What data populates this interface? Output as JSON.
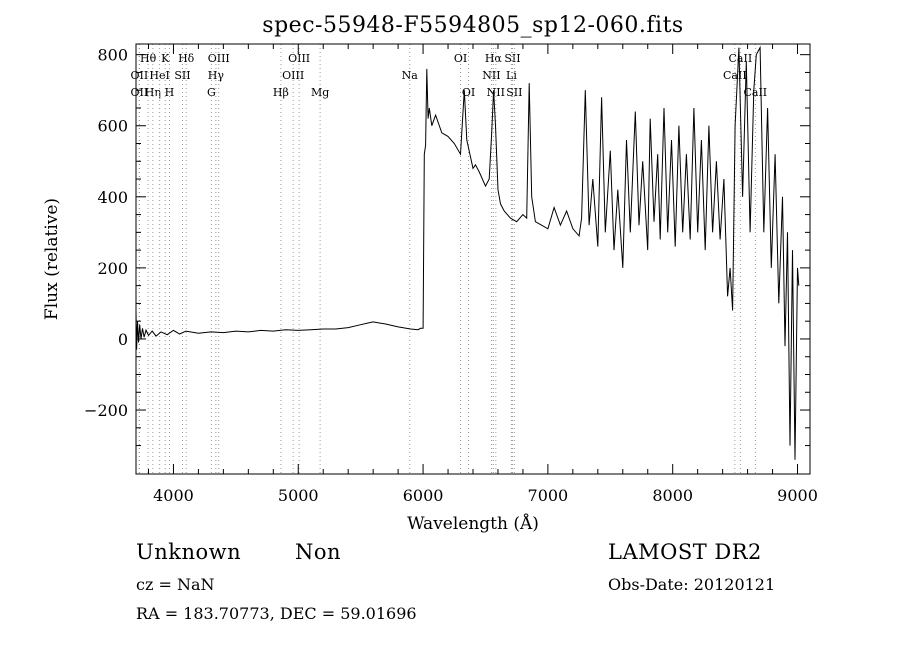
{
  "chart_data": {
    "type": "line",
    "title": "spec-55948-F5594805_sp12-060.fits",
    "xlabel": "Wavelength (Å)",
    "ylabel": "Flux (relative)",
    "xlim": [
      3700,
      9100
    ],
    "ylim": [
      -380,
      830
    ],
    "xticks": [
      {
        "value": 4000,
        "label": "4000"
      },
      {
        "value": 5000,
        "label": "5000"
      },
      {
        "value": 6000,
        "label": "6000"
      },
      {
        "value": 7000,
        "label": "7000"
      },
      {
        "value": 8000,
        "label": "8000"
      },
      {
        "value": 9000,
        "label": "9000"
      }
    ],
    "yticks": [
      {
        "value": -200,
        "label": "−200"
      },
      {
        "value": 0,
        "label": "0"
      },
      {
        "value": 200,
        "label": "200"
      },
      {
        "value": 400,
        "label": "400"
      },
      {
        "value": 600,
        "label": "600"
      },
      {
        "value": 800,
        "label": "800"
      }
    ],
    "grid": false,
    "series": [
      {
        "values": [
          [
            3700,
            80
          ],
          [
            3705,
            -30
          ],
          [
            3712,
            50
          ],
          [
            3720,
            -10
          ],
          [
            3730,
            40
          ],
          [
            3740,
            0
          ],
          [
            3752,
            30
          ],
          [
            3765,
            5
          ],
          [
            3780,
            25
          ],
          [
            3800,
            10
          ],
          [
            3830,
            22
          ],
          [
            3860,
            8
          ],
          [
            3900,
            20
          ],
          [
            3950,
            12
          ],
          [
            4000,
            24
          ],
          [
            4050,
            14
          ],
          [
            4100,
            22
          ],
          [
            4200,
            16
          ],
          [
            4300,
            20
          ],
          [
            4400,
            18
          ],
          [
            4500,
            22
          ],
          [
            4600,
            20
          ],
          [
            4700,
            24
          ],
          [
            4800,
            22
          ],
          [
            4900,
            26
          ],
          [
            5000,
            24
          ],
          [
            5100,
            26
          ],
          [
            5200,
            28
          ],
          [
            5300,
            28
          ],
          [
            5400,
            32
          ],
          [
            5500,
            40
          ],
          [
            5550,
            44
          ],
          [
            5600,
            48
          ],
          [
            5650,
            45
          ],
          [
            5700,
            42
          ],
          [
            5800,
            34
          ],
          [
            5900,
            28
          ],
          [
            5960,
            26
          ],
          [
            5980,
            30
          ],
          [
            6000,
            30
          ],
          [
            6010,
            520
          ],
          [
            6020,
            545
          ],
          [
            6030,
            760
          ],
          [
            6040,
            620
          ],
          [
            6050,
            650
          ],
          [
            6070,
            600
          ],
          [
            6100,
            630
          ],
          [
            6150,
            580
          ],
          [
            6200,
            570
          ],
          [
            6250,
            550
          ],
          [
            6300,
            520
          ],
          [
            6330,
            700
          ],
          [
            6350,
            560
          ],
          [
            6400,
            480
          ],
          [
            6420,
            490
          ],
          [
            6450,
            470
          ],
          [
            6500,
            430
          ],
          [
            6530,
            450
          ],
          [
            6550,
            580
          ],
          [
            6565,
            700
          ],
          [
            6580,
            600
          ],
          [
            6600,
            420
          ],
          [
            6620,
            380
          ],
          [
            6650,
            360
          ],
          [
            6700,
            340
          ],
          [
            6750,
            330
          ],
          [
            6800,
            350
          ],
          [
            6830,
            340
          ],
          [
            6850,
            720
          ],
          [
            6870,
            400
          ],
          [
            6900,
            330
          ],
          [
            6950,
            320
          ],
          [
            7000,
            310
          ],
          [
            7050,
            370
          ],
          [
            7100,
            320
          ],
          [
            7150,
            360
          ],
          [
            7200,
            310
          ],
          [
            7250,
            290
          ],
          [
            7270,
            340
          ],
          [
            7300,
            700
          ],
          [
            7330,
            320
          ],
          [
            7360,
            450
          ],
          [
            7400,
            260
          ],
          [
            7430,
            680
          ],
          [
            7460,
            300
          ],
          [
            7500,
            530
          ],
          [
            7530,
            250
          ],
          [
            7560,
            420
          ],
          [
            7600,
            200
          ],
          [
            7630,
            560
          ],
          [
            7660,
            300
          ],
          [
            7700,
            640
          ],
          [
            7730,
            320
          ],
          [
            7760,
            500
          ],
          [
            7800,
            250
          ],
          [
            7820,
            620
          ],
          [
            7850,
            330
          ],
          [
            7880,
            520
          ],
          [
            7900,
            280
          ],
          [
            7930,
            650
          ],
          [
            7960,
            300
          ],
          [
            7990,
            560
          ],
          [
            8020,
            260
          ],
          [
            8050,
            600
          ],
          [
            8080,
            300
          ],
          [
            8110,
            520
          ],
          [
            8140,
            280
          ],
          [
            8170,
            650
          ],
          [
            8200,
            300
          ],
          [
            8230,
            560
          ],
          [
            8260,
            250
          ],
          [
            8290,
            600
          ],
          [
            8320,
            300
          ],
          [
            8350,
            500
          ],
          [
            8380,
            280
          ],
          [
            8410,
            450
          ],
          [
            8440,
            120
          ],
          [
            8460,
            200
          ],
          [
            8480,
            80
          ],
          [
            8500,
            600
          ],
          [
            8530,
            820
          ],
          [
            8560,
            400
          ],
          [
            8590,
            780
          ],
          [
            8620,
            300
          ],
          [
            8650,
            700
          ],
          [
            8670,
            800
          ],
          [
            8700,
            820
          ],
          [
            8730,
            300
          ],
          [
            8760,
            650
          ],
          [
            8790,
            200
          ],
          [
            8820,
            520
          ],
          [
            8850,
            100
          ],
          [
            8880,
            400
          ],
          [
            8900,
            -20
          ],
          [
            8920,
            300
          ],
          [
            8940,
            -300
          ],
          [
            8960,
            250
          ],
          [
            8980,
            -340
          ],
          [
            9000,
            200
          ],
          [
            9010,
            150
          ]
        ]
      }
    ],
    "line_markers": [
      {
        "name": "OII",
        "wavelength": 3727,
        "row": 2
      },
      {
        "name": "Hθ",
        "wavelength": 3797,
        "row": 0
      },
      {
        "name": "OII",
        "wavelength": 3727,
        "row": 1
      },
      {
        "name": "Hη",
        "wavelength": 3835,
        "row": 2
      },
      {
        "name": "K",
        "wavelength": 3934,
        "row": 0
      },
      {
        "name": "HeI",
        "wavelength": 3889,
        "row": 1
      },
      {
        "name": "SII",
        "wavelength": 4072,
        "row": 1
      },
      {
        "name": "H",
        "wavelength": 3968,
        "row": 2
      },
      {
        "name": "Hδ",
        "wavelength": 4102,
        "row": 0
      },
      {
        "name": "OIII",
        "wavelength": 4363,
        "row": 0
      },
      {
        "name": "Hγ",
        "wavelength": 4340,
        "row": 1
      },
      {
        "name": "G",
        "wavelength": 4304,
        "row": 2
      },
      {
        "name": "OIII",
        "wavelength": 5007,
        "row": 0
      },
      {
        "name": "OIII",
        "wavelength": 4959,
        "row": 1
      },
      {
        "name": "Hβ",
        "wavelength": 4861,
        "row": 2
      },
      {
        "name": "Mg",
        "wavelength": 5175,
        "row": 2
      },
      {
        "name": "Na",
        "wavelength": 5893,
        "row": 1
      },
      {
        "name": "OI",
        "wavelength": 6300,
        "row": 0
      },
      {
        "name": "OI",
        "wavelength": 6364,
        "row": 2
      },
      {
        "name": "Hα",
        "wavelength": 6563,
        "row": 0
      },
      {
        "name": "SII",
        "wavelength": 6716,
        "row": 0
      },
      {
        "name": "NII",
        "wavelength": 6548,
        "row": 1
      },
      {
        "name": "Li",
        "wavelength": 6708,
        "row": 1
      },
      {
        "name": "NII",
        "wavelength": 6583,
        "row": 2
      },
      {
        "name": "SII",
        "wavelength": 6731,
        "row": 2
      },
      {
        "name": "CaII",
        "wavelength": 8542,
        "row": 0
      },
      {
        "name": "CaII",
        "wavelength": 8498,
        "row": 1
      },
      {
        "name": "CaII",
        "wavelength": 8662,
        "row": 2
      }
    ]
  },
  "info": {
    "class": "Unknown",
    "subclass": "Non",
    "survey": "LAMOST DR2",
    "cz": "cz = NaN",
    "obs_date": "Obs-Date: 20120121",
    "coords": "RA = 183.70773, DEC =  59.01696"
  }
}
